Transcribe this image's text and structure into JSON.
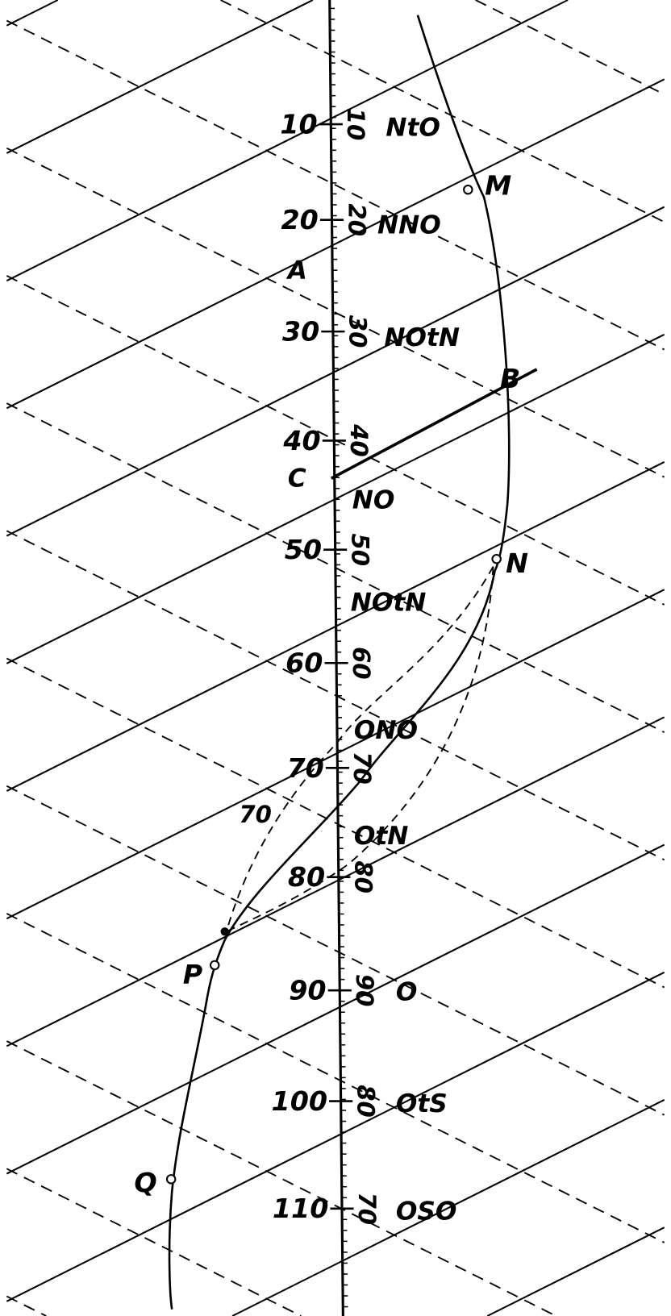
{
  "diagram": {
    "scale_left": [
      "10",
      "20",
      "30",
      "40",
      "50",
      "60",
      "70",
      "80",
      "90",
      "100",
      "110"
    ],
    "scale_right": [
      "10",
      "20",
      "30",
      "40",
      "50",
      "60",
      "70",
      "80",
      "90",
      "80",
      "70"
    ],
    "compass": [
      "NtO",
      "NNO",
      "NOtN",
      "NO",
      "NOtN",
      "ONO",
      "OtN",
      "O",
      "OtS",
      "OSO"
    ],
    "points": {
      "M": "M",
      "N": "N",
      "P": "P",
      "Q": "Q"
    },
    "markers": {
      "A": "A",
      "B": "B",
      "C": "C"
    },
    "extra_label": "70",
    "colors": {
      "ink": "#000000",
      "paper": "#ffffff"
    }
  }
}
